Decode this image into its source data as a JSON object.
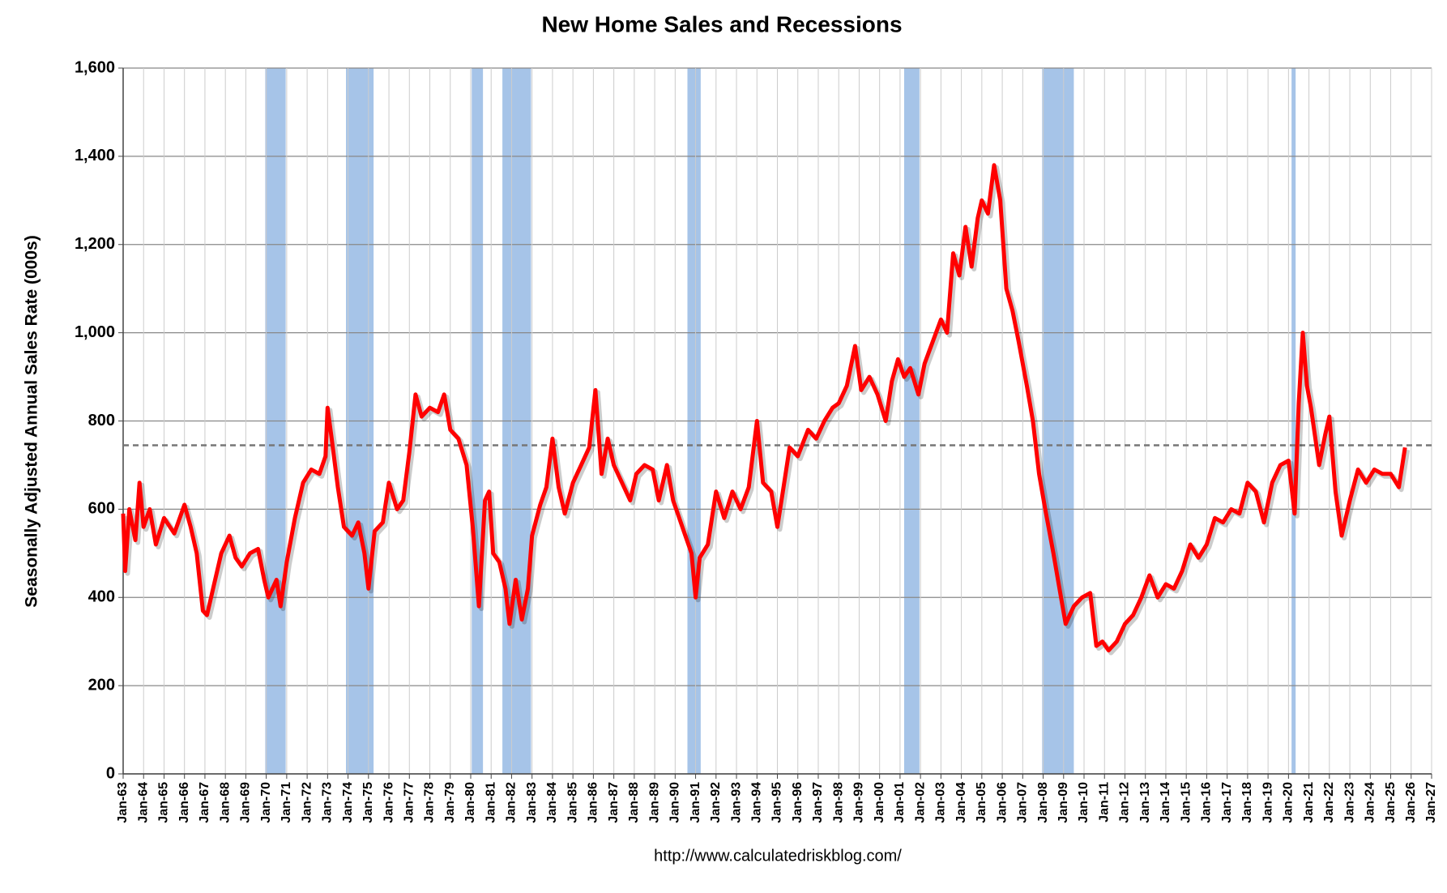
{
  "chart_data": {
    "type": "line",
    "title": "New Home Sales and Recessions",
    "y_label": "Seasonally Adjusted Annual Sales Rate (000s)",
    "footer": "http://www.calculatedriskblog.com/",
    "xlim": [
      1963,
      2027
    ],
    "ylim": [
      0,
      1600
    ],
    "yticks": [
      0,
      200,
      400,
      {
        "value": 600,
        "label": "600"
      },
      {
        "value": 800,
        "label": "800"
      },
      {
        "value": 1000,
        "label": "1,000"
      },
      {
        "value": 1200,
        "label": "1,200"
      },
      {
        "value": 1400,
        "label": "1,400"
      },
      {
        "value": 1600,
        "label": "1,600"
      }
    ],
    "xticks": [
      {
        "value": 1963,
        "label": "Jan-63"
      },
      {
        "value": 1964,
        "label": "Jan-64"
      },
      {
        "value": 1965,
        "label": "Jan-65"
      },
      {
        "value": 1966,
        "label": "Jan-66"
      },
      {
        "value": 1967,
        "label": "Jan-67"
      },
      {
        "value": 1968,
        "label": "Jan-68"
      },
      {
        "value": 1969,
        "label": "Jan-69"
      },
      {
        "value": 1970,
        "label": "Jan-70"
      },
      {
        "value": 1971,
        "label": "Jan-71"
      },
      {
        "value": 1972,
        "label": "Jan-72"
      },
      {
        "value": 1973,
        "label": "Jan-73"
      },
      {
        "value": 1974,
        "label": "Jan-74"
      },
      {
        "value": 1975,
        "label": "Jan-75"
      },
      {
        "value": 1976,
        "label": "Jan-76"
      },
      {
        "value": 1977,
        "label": "Jan-77"
      },
      {
        "value": 1978,
        "label": "Jan-78"
      },
      {
        "value": 1979,
        "label": "Jan-79"
      },
      {
        "value": 1980,
        "label": "Jan-80"
      },
      {
        "value": 1981,
        "label": "Jan-81"
      },
      {
        "value": 1982,
        "label": "Jan-82"
      },
      {
        "value": 1983,
        "label": "Jan-83"
      },
      {
        "value": 1984,
        "label": "Jan-84"
      },
      {
        "value": 1985,
        "label": "Jan-85"
      },
      {
        "value": 1986,
        "label": "Jan-86"
      },
      {
        "value": 1987,
        "label": "Jan-87"
      },
      {
        "value": 1988,
        "label": "Jan-88"
      },
      {
        "value": 1989,
        "label": "Jan-89"
      },
      {
        "value": 1990,
        "label": "Jan-90"
      },
      {
        "value": 1991,
        "label": "Jan-91"
      },
      {
        "value": 1992,
        "label": "Jan-92"
      },
      {
        "value": 1993,
        "label": "Jan-93"
      },
      {
        "value": 1994,
        "label": "Jan-94"
      },
      {
        "value": 1995,
        "label": "Jan-95"
      },
      {
        "value": 1996,
        "label": "Jan-96"
      },
      {
        "value": 1997,
        "label": "Jan-97"
      },
      {
        "value": 1998,
        "label": "Jan-98"
      },
      {
        "value": 1999,
        "label": "Jan-99"
      },
      {
        "value": 2000,
        "label": "Jan-00"
      },
      {
        "value": 2001,
        "label": "Jan-01"
      },
      {
        "value": 2002,
        "label": "Jan-02"
      },
      {
        "value": 2003,
        "label": "Jan-03"
      },
      {
        "value": 2004,
        "label": "Jan-04"
      },
      {
        "value": 2005,
        "label": "Jan-05"
      },
      {
        "value": 2006,
        "label": "Jan-06"
      },
      {
        "value": 2007,
        "label": "Jan-07"
      },
      {
        "value": 2008,
        "label": "Jan-08"
      },
      {
        "value": 2009,
        "label": "Jan-09"
      },
      {
        "value": 2010,
        "label": "Jan-10"
      },
      {
        "value": 2011,
        "label": "Jan-11"
      },
      {
        "value": 2012,
        "label": "Jan-12"
      },
      {
        "value": 2013,
        "label": "Jan-13"
      },
      {
        "value": 2014,
        "label": "Jan-14"
      },
      {
        "value": 2015,
        "label": "Jan-15"
      },
      {
        "value": 2016,
        "label": "Jan-16"
      },
      {
        "value": 2017,
        "label": "Jan-17"
      },
      {
        "value": 2018,
        "label": "Jan-18"
      },
      {
        "value": 2019,
        "label": "Jan-19"
      },
      {
        "value": 2020,
        "label": "Jan-20"
      },
      {
        "value": 2021,
        "label": "Jan-21"
      },
      {
        "value": 2022,
        "label": "Jan-22"
      },
      {
        "value": 2023,
        "label": "Jan-23"
      },
      {
        "value": 2024,
        "label": "Jan-24"
      },
      {
        "value": 2025,
        "label": "Jan-25"
      },
      {
        "value": 2026,
        "label": "Jan-26"
      },
      {
        "value": 2027,
        "label": "Jan-27"
      }
    ],
    "grid": true,
    "recession_color": "#a6c4e8",
    "recessions": [
      [
        1969.95,
        1970.95
      ],
      [
        1973.9,
        1975.25
      ],
      [
        1980.05,
        1980.6
      ],
      [
        1981.55,
        1982.95
      ],
      [
        1990.6,
        1991.25
      ],
      [
        2001.2,
        2001.95
      ],
      [
        2007.95,
        2009.5
      ],
      [
        2020.15,
        2020.35
      ]
    ],
    "reference_line": 745,
    "series": [
      {
        "color": "#ff0000",
        "x": [
          1963.0,
          1963.1,
          1963.3,
          1963.6,
          1963.8,
          1964.0,
          1964.3,
          1964.6,
          1965.0,
          1965.5,
          1966.0,
          1966.3,
          1966.6,
          1966.9,
          1967.1,
          1967.4,
          1967.8,
          1968.2,
          1968.5,
          1968.8,
          1969.2,
          1969.6,
          1969.9,
          1970.1,
          1970.5,
          1970.7,
          1971.0,
          1971.4,
          1971.8,
          1972.2,
          1972.6,
          1972.9,
          1973.0,
          1973.2,
          1973.5,
          1973.8,
          1974.2,
          1974.5,
          1974.8,
          1975.0,
          1975.3,
          1975.7,
          1976.0,
          1976.4,
          1976.7,
          1977.0,
          1977.3,
          1977.6,
          1978.0,
          1978.4,
          1978.7,
          1979.0,
          1979.4,
          1979.8,
          1980.1,
          1980.4,
          1980.7,
          1980.9,
          1981.1,
          1981.4,
          1981.7,
          1981.9,
          1982.2,
          1982.5,
          1982.8,
          1983.0,
          1983.4,
          1983.7,
          1984.0,
          1984.3,
          1984.6,
          1985.0,
          1985.4,
          1985.8,
          1986.1,
          1986.4,
          1986.7,
          1987.0,
          1987.4,
          1987.8,
          1988.1,
          1988.5,
          1988.9,
          1989.2,
          1989.6,
          1989.9,
          1990.2,
          1990.5,
          1990.8,
          1991.0,
          1991.2,
          1991.6,
          1992.0,
          1992.4,
          1992.8,
          1993.2,
          1993.6,
          1994.0,
          1994.3,
          1994.7,
          1995.0,
          1995.3,
          1995.6,
          1996.0,
          1996.5,
          1996.9,
          1997.3,
          1997.7,
          1998.0,
          1998.4,
          1998.8,
          1999.1,
          1999.5,
          1999.9,
          2000.3,
          2000.6,
          2000.9,
          2001.2,
          2001.5,
          2001.9,
          2002.2,
          2002.6,
          2003.0,
          2003.3,
          2003.6,
          2003.9,
          2004.2,
          2004.5,
          2004.8,
          2005.0,
          2005.3,
          2005.6,
          2005.9,
          2006.2,
          2006.5,
          2006.8,
          2007.2,
          2007.5,
          2007.8,
          2008.1,
          2008.5,
          2008.8,
          2009.1,
          2009.5,
          2009.9,
          2010.3,
          2010.6,
          2010.9,
          2011.2,
          2011.6,
          2012.0,
          2012.4,
          2012.8,
          2013.2,
          2013.6,
          2014.0,
          2014.4,
          2014.8,
          2015.2,
          2015.6,
          2016.0,
          2016.4,
          2016.8,
          2017.2,
          2017.6,
          2018.0,
          2018.4,
          2018.8,
          2019.2,
          2019.6,
          2020.0,
          2020.3,
          2020.5,
          2020.7,
          2020.9,
          2021.1,
          2021.5,
          2021.8,
          2022.0,
          2022.3,
          2022.6,
          2023.0,
          2023.4,
          2023.8,
          2024.2,
          2024.6,
          2025.0,
          2025.4,
          2025.7
        ],
        "values": [
          590,
          460,
          600,
          530,
          660,
          560,
          600,
          520,
          580,
          545,
          610,
          560,
          500,
          370,
          360,
          420,
          500,
          540,
          490,
          470,
          500,
          510,
          440,
          400,
          440,
          380,
          480,
          580,
          660,
          690,
          680,
          720,
          830,
          760,
          650,
          560,
          540,
          570,
          500,
          420,
          550,
          570,
          660,
          600,
          620,
          730,
          860,
          810,
          830,
          820,
          860,
          780,
          760,
          700,
          560,
          380,
          620,
          640,
          500,
          480,
          420,
          340,
          440,
          350,
          420,
          540,
          610,
          650,
          760,
          650,
          590,
          660,
          700,
          740,
          870,
          680,
          760,
          700,
          660,
          620,
          680,
          700,
          690,
          620,
          700,
          620,
          580,
          540,
          500,
          400,
          490,
          520,
          640,
          580,
          640,
          600,
          650,
          800,
          660,
          640,
          560,
          650,
          740,
          720,
          780,
          760,
          800,
          830,
          840,
          880,
          970,
          870,
          900,
          860,
          800,
          890,
          940,
          900,
          920,
          860,
          930,
          980,
          1030,
          1000,
          1180,
          1130,
          1240,
          1150,
          1260,
          1300,
          1270,
          1380,
          1300,
          1100,
          1050,
          980,
          880,
          800,
          680,
          600,
          500,
          420,
          340,
          380,
          400,
          410,
          290,
          300,
          280,
          300,
          340,
          360,
          400,
          450,
          400,
          430,
          420,
          460,
          520,
          490,
          520,
          580,
          570,
          600,
          590,
          660,
          640,
          570,
          660,
          700,
          710,
          590,
          840,
          1000,
          880,
          830,
          700,
          770,
          810,
          640,
          540,
          620,
          690,
          660,
          690,
          680,
          680,
          650,
          740
        ]
      }
    ]
  }
}
